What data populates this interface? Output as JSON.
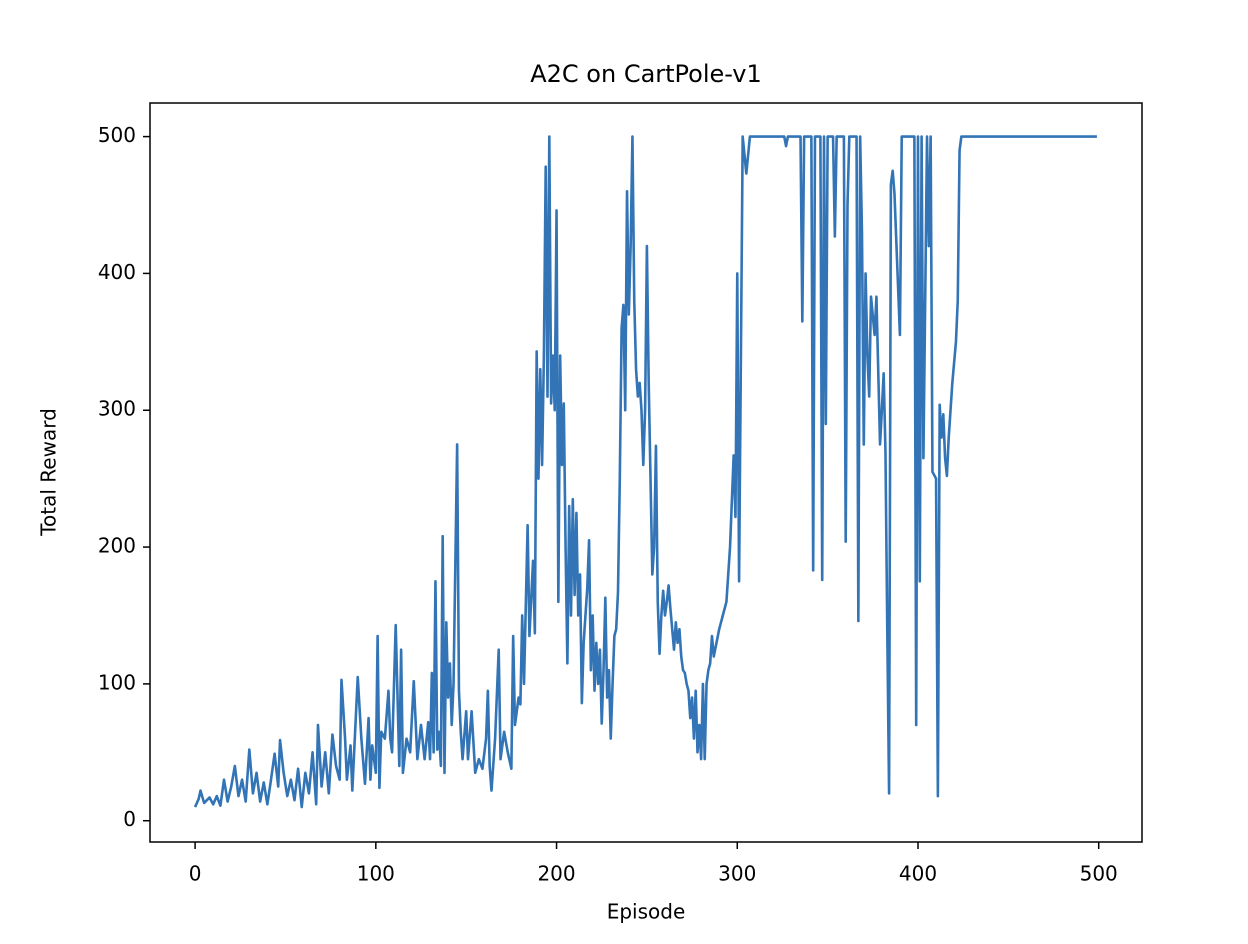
{
  "chart_data": {
    "type": "line",
    "title": "A2C on CartPole-v1",
    "x_label": "Episode",
    "y_label": "Total Reward",
    "xlim": [
      -24.95,
      523.95
    ],
    "ylim": [
      -15.55,
      524.55
    ],
    "xticks": [
      0,
      100,
      200,
      300,
      400,
      500
    ],
    "yticks": [
      0,
      100,
      200,
      300,
      400,
      500
    ],
    "grid": false,
    "series": [
      {
        "name": "Total Reward",
        "color": "#3274b5",
        "x": [
          0,
          2,
          3,
          5,
          8,
          10,
          12,
          14,
          16,
          18,
          20,
          22,
          24,
          26,
          28,
          30,
          32,
          34,
          36,
          38,
          40,
          42,
          44,
          46,
          47,
          49,
          51,
          53,
          55,
          57,
          59,
          61,
          63,
          65,
          67,
          68,
          70,
          72,
          74,
          76,
          78,
          80,
          81,
          83,
          84,
          86,
          87,
          88,
          90,
          92,
          94,
          96,
          97,
          98,
          100,
          101,
          102,
          103,
          105,
          107,
          108,
          109,
          111,
          113,
          114,
          115,
          117,
          119,
          121,
          123,
          125,
          127,
          129,
          130,
          131,
          132,
          133,
          134,
          135,
          136,
          137,
          138,
          139,
          140,
          141,
          142,
          143,
          145,
          146,
          147,
          148,
          150,
          151,
          153,
          155,
          157,
          159,
          161,
          162,
          163,
          164,
          166,
          168,
          169,
          171,
          173,
          175,
          176,
          177,
          179,
          180,
          181,
          182,
          184,
          185,
          187,
          188,
          189,
          190,
          191,
          192,
          193,
          194,
          195,
          196,
          197,
          198,
          199,
          200,
          201,
          202,
          203,
          204,
          205,
          206,
          207,
          208,
          209,
          210,
          211,
          212,
          213,
          214,
          215,
          216,
          217,
          218,
          219,
          220,
          221,
          222,
          223,
          224,
          225,
          226,
          227,
          228,
          229,
          230,
          231,
          232,
          233,
          234,
          235,
          236,
          237,
          238,
          239,
          240,
          241,
          242,
          243,
          244,
          245,
          246,
          247,
          248,
          249,
          250,
          251,
          252,
          253,
          254,
          255,
          256,
          257,
          258,
          259,
          260,
          261,
          262,
          263,
          264,
          265,
          266,
          267,
          268,
          269,
          270,
          271,
          272,
          273,
          274,
          275,
          276,
          277,
          278,
          279,
          280,
          281,
          282,
          283,
          284,
          285,
          286,
          287,
          290,
          292,
          294,
          296,
          298,
          299,
          300,
          301,
          303,
          305,
          307,
          326,
          327,
          328,
          335,
          336,
          337,
          341,
          342,
          343,
          346,
          347,
          348,
          349,
          350,
          353,
          354,
          355,
          359,
          360,
          361,
          362,
          366,
          367,
          368,
          369,
          370,
          371,
          372,
          373,
          374,
          376,
          377,
          379,
          380,
          381,
          382,
          383,
          384,
          385,
          386,
          387,
          390,
          391,
          398,
          399,
          400,
          401,
          402,
          403,
          405,
          406,
          407,
          408,
          410,
          411,
          412,
          413,
          414,
          415,
          416,
          417,
          419,
          421,
          422,
          423,
          424,
          499
        ],
        "values": [
          10,
          16,
          22,
          13,
          17,
          12,
          18,
          11,
          30,
          14,
          25,
          40,
          18,
          30,
          14,
          52,
          20,
          35,
          14,
          28,
          12,
          30,
          49,
          25,
          59,
          35,
          18,
          30,
          15,
          38,
          10,
          35,
          20,
          50,
          12,
          70,
          25,
          50,
          20,
          63,
          40,
          30,
          103,
          60,
          30,
          55,
          22,
          50,
          105,
          60,
          27,
          75,
          30,
          55,
          35,
          135,
          24,
          65,
          60,
          95,
          60,
          50,
          143,
          40,
          125,
          35,
          60,
          50,
          102,
          45,
          70,
          45,
          72,
          45,
          108,
          50,
          175,
          52,
          65,
          40,
          208,
          35,
          145,
          90,
          115,
          70,
          100,
          275,
          95,
          65,
          45,
          80,
          45,
          80,
          35,
          45,
          38,
          60,
          95,
          40,
          22,
          60,
          125,
          45,
          65,
          50,
          38,
          135,
          70,
          90,
          85,
          150,
          100,
          216,
          135,
          190,
          137,
          343,
          250,
          330,
          260,
          340,
          478,
          310,
          500,
          305,
          340,
          300,
          446,
          160,
          340,
          260,
          305,
          200,
          115,
          230,
          150,
          235,
          165,
          225,
          150,
          180,
          86,
          130,
          150,
          170,
          205,
          110,
          150,
          95,
          130,
          100,
          125,
          71,
          110,
          163,
          90,
          110,
          60,
          100,
          135,
          140,
          167,
          250,
          360,
          377,
          300,
          460,
          370,
          420,
          500,
          380,
          330,
          310,
          320,
          300,
          260,
          300,
          420,
          320,
          250,
          180,
          200,
          274,
          160,
          122,
          150,
          168,
          150,
          160,
          172,
          155,
          140,
          125,
          145,
          130,
          140,
          120,
          110,
          108,
          100,
          95,
          75,
          90,
          60,
          95,
          50,
          70,
          45,
          100,
          45,
          100,
          110,
          115,
          135,
          120,
          140,
          150,
          160,
          200,
          267,
          222,
          400,
          175,
          500,
          473,
          500,
          500,
          493,
          500,
          500,
          365,
          500,
          500,
          183,
          500,
          500,
          176,
          500,
          290,
          500,
          500,
          427,
          500,
          500,
          204,
          450,
          500,
          500,
          146,
          500,
          430,
          275,
          400,
          340,
          310,
          383,
          355,
          383,
          275,
          300,
          327,
          270,
          140,
          20,
          465,
          475,
          458,
          355,
          500,
          500,
          70,
          500,
          175,
          500,
          265,
          500,
          420,
          500,
          255,
          250,
          18,
          304,
          280,
          297,
          265,
          252,
          280,
          320,
          350,
          380,
          490,
          500,
          500
        ]
      }
    ]
  }
}
